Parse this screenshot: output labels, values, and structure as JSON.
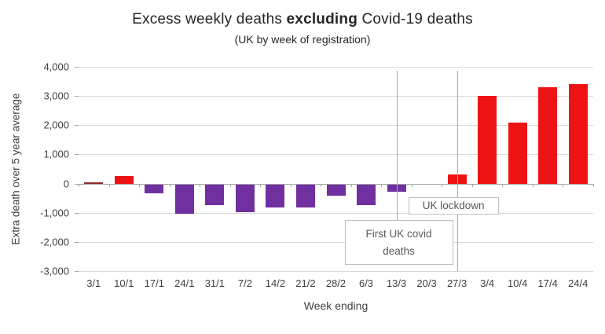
{
  "title": {
    "part1": "Excess weekly deaths ",
    "bold": "excluding",
    "part2": " Covid-19 deaths"
  },
  "subtitle": "(UK by week of registration)",
  "chart_data": {
    "type": "bar",
    "title": "Excess weekly deaths excluding Covid-19 deaths",
    "subtitle": "(UK by week of registration)",
    "xlabel": "Week ending",
    "ylabel": "Extra death over 5 year average",
    "categories": [
      "3/1",
      "10/1",
      "17/1",
      "24/1",
      "31/1",
      "7/2",
      "14/2",
      "21/2",
      "28/2",
      "6/3",
      "13/3",
      "20/3",
      "27/3",
      "3/4",
      "10/4",
      "17/4",
      "24/4"
    ],
    "values": [
      50,
      250,
      -300,
      -1000,
      -700,
      -950,
      -800,
      -800,
      -400,
      -700,
      -250,
      0,
      300,
      3000,
      2100,
      3300,
      3400
    ],
    "bar_colors": [
      "#8a2b2b",
      "#ee1313",
      "#7030a0",
      "#7030a0",
      "#7030a0",
      "#7030a0",
      "#7030a0",
      "#7030a0",
      "#7030a0",
      "#7030a0",
      "#7030a0",
      "#7030a0",
      "#ee1313",
      "#ee1313",
      "#ee1313",
      "#ee1313",
      "#ee1313"
    ],
    "ylim": [
      -3000,
      4000
    ],
    "yticks": [
      4000,
      3000,
      2000,
      1000,
      0,
      -1000,
      -2000,
      -3000
    ],
    "ytick_labels": [
      "4,000",
      "3,000",
      "2,000",
      "1,000",
      "0",
      "-1,000",
      "-2,000",
      "-3,000"
    ],
    "grid": true,
    "legend": "none",
    "annotations": [
      {
        "name": "first-uk-covid-deaths",
        "category": "13/3",
        "line1": "First UK covid",
        "line2": "deaths"
      },
      {
        "name": "uk-lockdown",
        "category": "27/3",
        "line1": "UK lockdown",
        "line2": ""
      }
    ]
  },
  "colors": {
    "positive_bar": "#ee1313",
    "negative_bar": "#7030a0",
    "grid": "#d9d9d9",
    "axis": "#a6a6a6",
    "text": "#404040",
    "annotation_border": "#bfbfbf",
    "annotation_text": "#595959"
  }
}
